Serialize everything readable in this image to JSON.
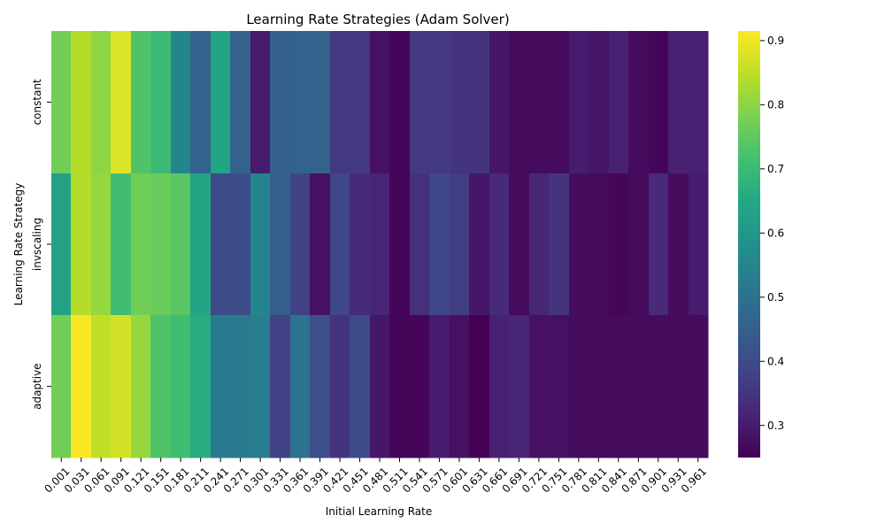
{
  "chart_data": {
    "type": "heatmap",
    "title": "Learning Rate Strategies (Adam Solver)",
    "xlabel": "Initial Learning Rate",
    "ylabel": "Learning Rate Strategy",
    "rows": [
      "constant",
      "invscaling",
      "adaptive"
    ],
    "columns": [
      "0.001",
      "0.031",
      "0.061",
      "0.091",
      "0.121",
      "0.151",
      "0.181",
      "0.211",
      "0.241",
      "0.271",
      "0.301",
      "0.331",
      "0.361",
      "0.391",
      "0.421",
      "0.451",
      "0.481",
      "0.511",
      "0.541",
      "0.571",
      "0.601",
      "0.631",
      "0.661",
      "0.691",
      "0.721",
      "0.751",
      "0.781",
      "0.811",
      "0.841",
      "0.871",
      "0.901",
      "0.931",
      "0.961"
    ],
    "values": [
      [
        0.77,
        0.84,
        0.8,
        0.88,
        0.73,
        0.7,
        0.55,
        0.46,
        0.64,
        0.46,
        0.3,
        0.45,
        0.46,
        0.46,
        0.36,
        0.36,
        0.28,
        0.26,
        0.36,
        0.36,
        0.35,
        0.35,
        0.29,
        0.27,
        0.27,
        0.27,
        0.3,
        0.29,
        0.31,
        0.27,
        0.26,
        0.31,
        0.31
      ],
      [
        0.63,
        0.84,
        0.81,
        0.71,
        0.77,
        0.76,
        0.74,
        0.64,
        0.4,
        0.4,
        0.55,
        0.45,
        0.38,
        0.28,
        0.39,
        0.33,
        0.32,
        0.26,
        0.34,
        0.39,
        0.37,
        0.29,
        0.33,
        0.27,
        0.32,
        0.35,
        0.27,
        0.27,
        0.26,
        0.27,
        0.33,
        0.27,
        0.3
      ],
      [
        0.77,
        0.91,
        0.85,
        0.87,
        0.81,
        0.73,
        0.71,
        0.66,
        0.52,
        0.52,
        0.53,
        0.38,
        0.5,
        0.41,
        0.35,
        0.4,
        0.29,
        0.26,
        0.26,
        0.3,
        0.28,
        0.25,
        0.31,
        0.32,
        0.28,
        0.28,
        0.27,
        0.27,
        0.27,
        0.27,
        0.27,
        0.27,
        0.27
      ]
    ],
    "colorbar": {
      "colormap": "viridis",
      "vmin": 0.25,
      "vmax": 0.915,
      "ticks": [
        0.3,
        0.4,
        0.5,
        0.6,
        0.7,
        0.8,
        0.9
      ],
      "tick_labels": [
        "0.3",
        "0.4",
        "0.5",
        "0.6",
        "0.7",
        "0.8",
        "0.9"
      ]
    },
    "grid": false,
    "legend": "colorbar-right"
  }
}
